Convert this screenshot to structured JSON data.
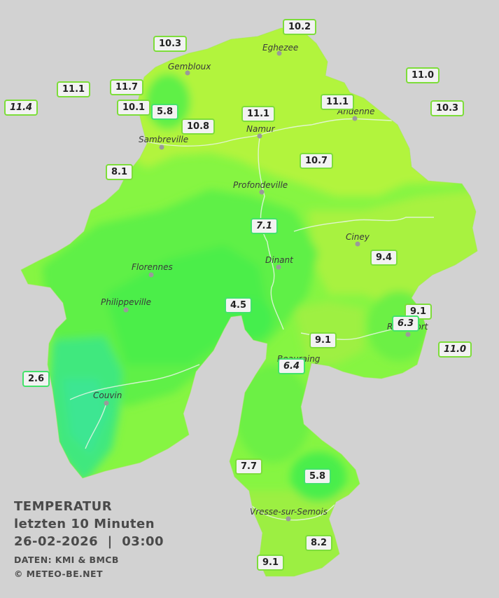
{
  "legend": {
    "title": "TEMPERATUR",
    "period": "letzten 10 Minuten",
    "datetime": "26-02-2026  |  03:00",
    "source": "DATEN: KMI & BMCB",
    "copyright": "© METEO-BE.NET"
  },
  "colors": {
    "background": "#d2d2d2",
    "warm": "#b4f53c",
    "mild": "#7ef540",
    "cool": "#46f050",
    "cold": "#3de88a",
    "river": "#e9f4e6"
  },
  "cities": [
    {
      "id": "eghezee",
      "name": "Eghezee"
    },
    {
      "id": "gembloux",
      "name": "Gembloux"
    },
    {
      "id": "andenne",
      "name": "Andenne"
    },
    {
      "id": "namur",
      "name": "Namur"
    },
    {
      "id": "sambreville",
      "name": "Sambreville"
    },
    {
      "id": "profondeville",
      "name": "Profondeville"
    },
    {
      "id": "ciney",
      "name": "Ciney"
    },
    {
      "id": "dinant",
      "name": "Dinant"
    },
    {
      "id": "florennes",
      "name": "Florennes"
    },
    {
      "id": "philippeville",
      "name": "Philippeville"
    },
    {
      "id": "rochefort",
      "name": "Rochefort"
    },
    {
      "id": "beauraing",
      "name": "Beauraing"
    },
    {
      "id": "couvin",
      "name": "Couvin"
    },
    {
      "id": "vresse",
      "name": "Vresse-sur-Semois"
    }
  ],
  "stations": [
    {
      "id": "s01",
      "value": "10.2"
    },
    {
      "id": "s02",
      "value": "10.3"
    },
    {
      "id": "s03",
      "value": "11.0"
    },
    {
      "id": "s04",
      "value": "11.1"
    },
    {
      "id": "s05",
      "value": "11.7"
    },
    {
      "id": "s06",
      "value": "11.4",
      "italic": true
    },
    {
      "id": "s07",
      "value": "10.1"
    },
    {
      "id": "s08",
      "value": "5.8"
    },
    {
      "id": "s09",
      "value": "11.1"
    },
    {
      "id": "s10",
      "value": "11.1"
    },
    {
      "id": "s11",
      "value": "10.3"
    },
    {
      "id": "s12",
      "value": "10.8"
    },
    {
      "id": "s13",
      "value": "10.7"
    },
    {
      "id": "s14",
      "value": "8.1"
    },
    {
      "id": "s15",
      "value": "7.1",
      "italic": true
    },
    {
      "id": "s16",
      "value": "9.4"
    },
    {
      "id": "s17",
      "value": "4.5"
    },
    {
      "id": "s18",
      "value": "9.1"
    },
    {
      "id": "s19",
      "value": "6.3",
      "italic": true
    },
    {
      "id": "s20",
      "value": "9.1"
    },
    {
      "id": "s21",
      "value": "11.0",
      "italic": true
    },
    {
      "id": "s22",
      "value": "6.4",
      "italic": true
    },
    {
      "id": "s23",
      "value": "2.6"
    },
    {
      "id": "s24",
      "value": "7.7"
    },
    {
      "id": "s25",
      "value": "5.8"
    },
    {
      "id": "s26",
      "value": "8.2"
    },
    {
      "id": "s27",
      "value": "9.1"
    }
  ]
}
